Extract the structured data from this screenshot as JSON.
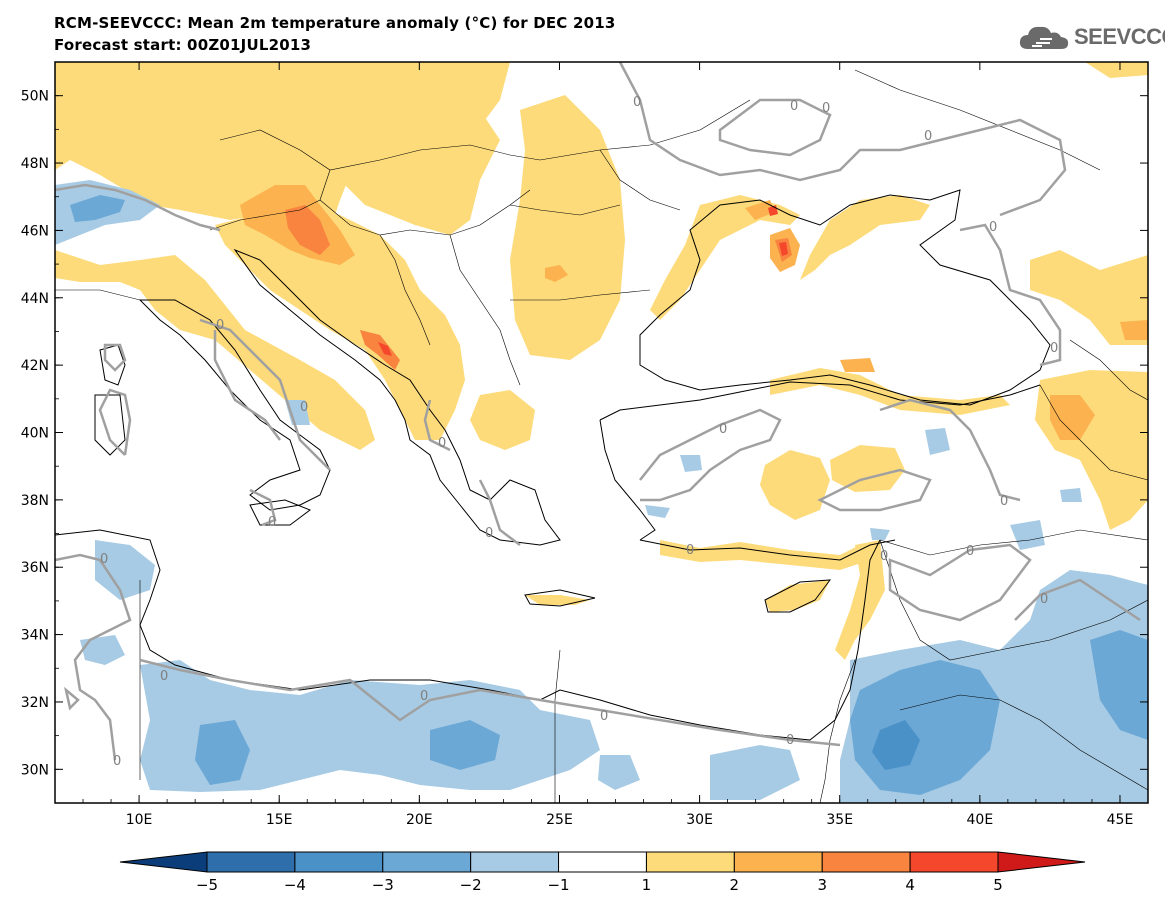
{
  "header": {
    "title": "RCM-SEEVCCC: Mean 2m temperature anomaly (°C) for DEC 2013",
    "subtitle": "Forecast start: 00Z01JUL2013"
  },
  "logo": {
    "text": "SEEVCCC",
    "icon": "cloud-icon"
  },
  "map": {
    "lon_range": [
      7,
      46
    ],
    "lat_range": [
      29,
      51
    ],
    "lon_ticks": [
      "10E",
      "15E",
      "20E",
      "25E",
      "30E",
      "35E",
      "40E",
      "45E"
    ],
    "lat_ticks": [
      "50N",
      "48N",
      "46N",
      "44N",
      "42N",
      "40N",
      "38N",
      "36N",
      "34N",
      "32N",
      "30N"
    ],
    "contour_labels": [
      "0",
      "0",
      "0",
      "0",
      "0",
      "0",
      "0",
      "0",
      "0",
      "0",
      "0",
      "0",
      "0",
      "0",
      "0",
      "0",
      "0",
      "0",
      "0",
      "0",
      "0",
      "0",
      "0"
    ]
  },
  "colorbar": {
    "tick_labels": [
      "−5",
      "−4",
      "−3",
      "−2",
      "−1",
      "1",
      "2",
      "3",
      "4",
      "5"
    ],
    "colors": [
      "#0b3d7a",
      "#2e6fab",
      "#4a91c8",
      "#6ba8d6",
      "#a7cbe4",
      "#ffffff",
      "#fddb7a",
      "#fbb24f",
      "#f8843f",
      "#f4472c",
      "#d01a1a"
    ]
  }
}
